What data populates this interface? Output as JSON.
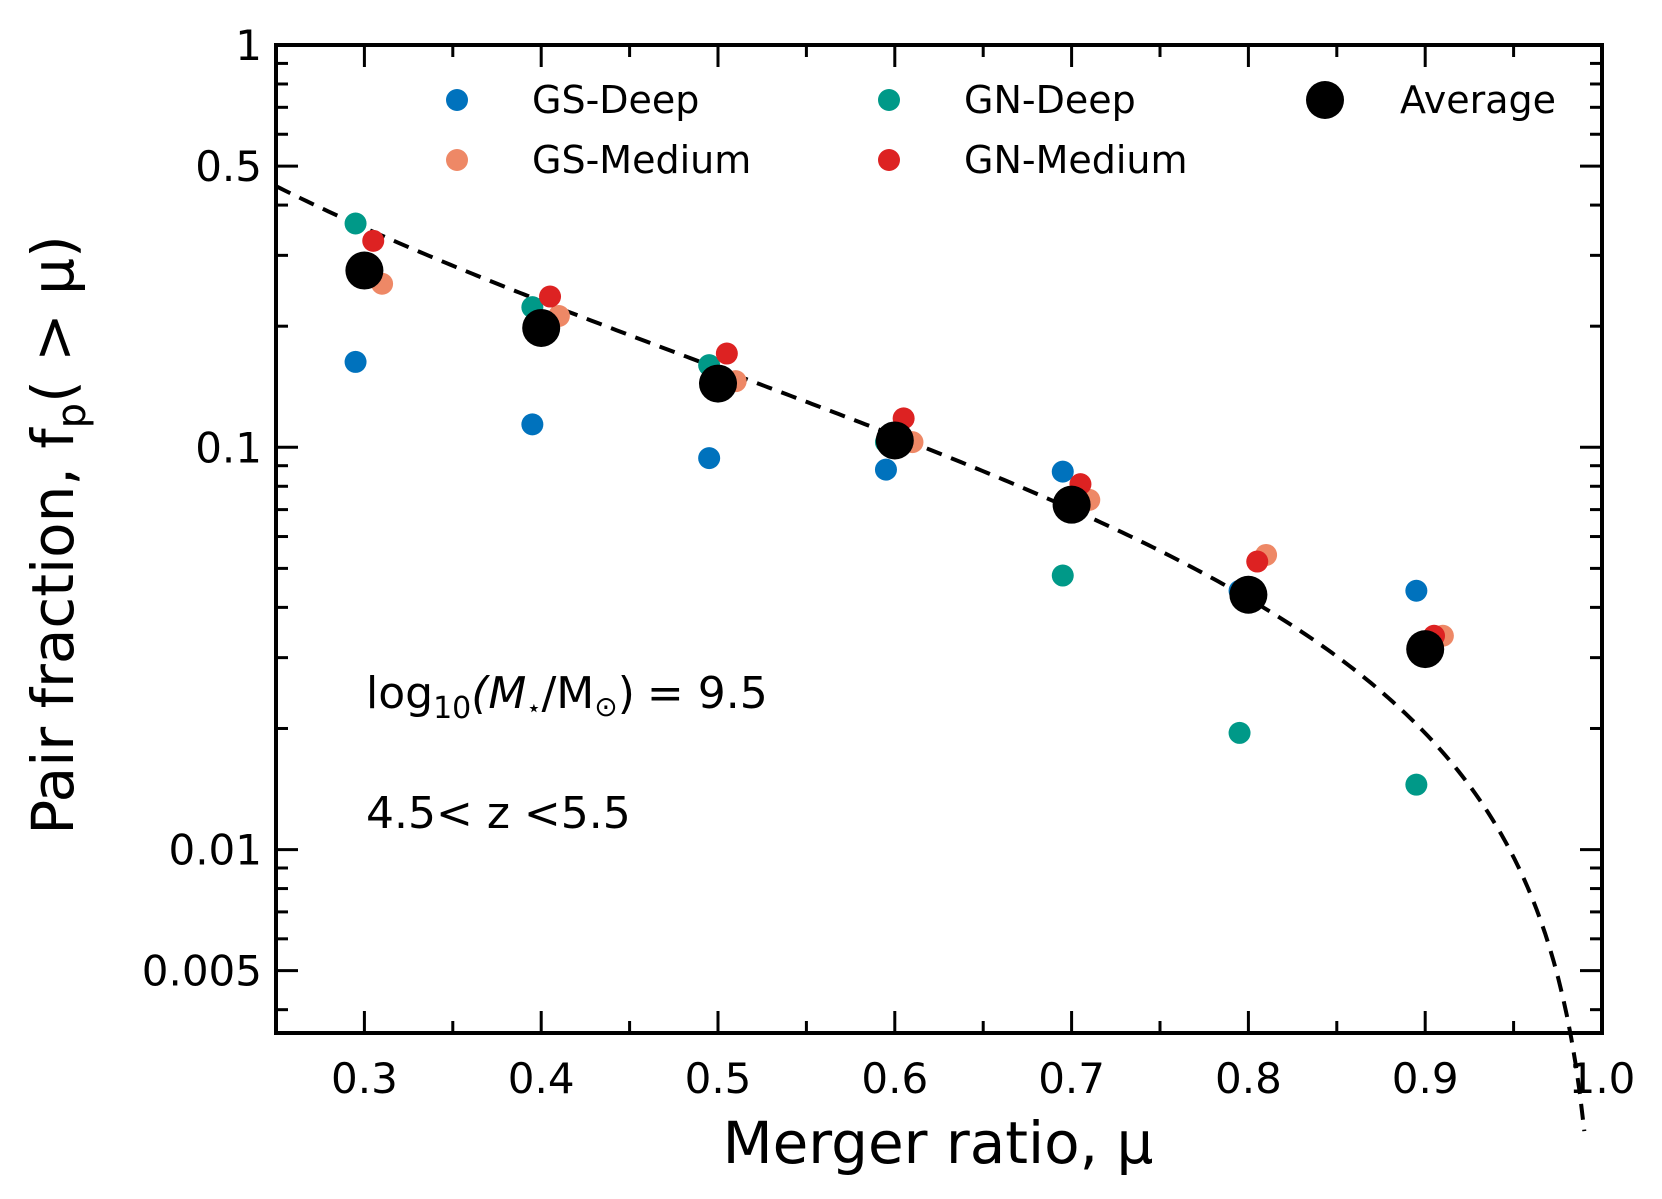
{
  "chart_data": {
    "type": "scatter",
    "xlabel": "Merger ratio, μ",
    "ylabel": "Pair fraction, f",
    "ylabel_subscript": "p",
    "ylabel_suffix": "( > μ)",
    "xlim": [
      0.25,
      1.0
    ],
    "ylim": [
      0.0035,
      1.0
    ],
    "yscale": "log",
    "x_ticks": [
      0.3,
      0.4,
      0.5,
      0.6,
      0.7,
      0.8,
      0.9,
      1.0
    ],
    "x_tick_labels": [
      "0.3",
      "0.4",
      "0.5",
      "0.6",
      "0.7",
      "0.8",
      "0.9",
      "1.0"
    ],
    "y_ticks": [
      0.005,
      0.01,
      0.1,
      0.5,
      1
    ],
    "y_tick_labels": [
      "0.005",
      "0.01",
      "0.1",
      "0.5",
      "1"
    ],
    "legend_position": "top",
    "series": [
      {
        "name": "GS-Deep",
        "color": "#0072bd",
        "x": [
          0.295,
          0.395,
          0.495,
          0.595,
          0.695,
          0.795,
          0.895
        ],
        "y": [
          0.163,
          0.114,
          0.094,
          0.088,
          0.087,
          0.044,
          0.044
        ]
      },
      {
        "name": "GS-Medium",
        "color": "#ee8866",
        "x": [
          0.31,
          0.41,
          0.51,
          0.61,
          0.71,
          0.81,
          0.91
        ],
        "y": [
          0.255,
          0.212,
          0.146,
          0.103,
          0.074,
          0.054,
          0.034
        ]
      },
      {
        "name": "GN-Deep",
        "color": "#009988",
        "x": [
          0.295,
          0.395,
          0.495,
          0.595,
          0.695,
          0.795,
          0.895
        ],
        "y": [
          0.36,
          0.223,
          0.16,
          0.103,
          0.048,
          0.0195,
          0.0145
        ]
      },
      {
        "name": "GN-Medium",
        "color": "#dd2222",
        "x": [
          0.305,
          0.405,
          0.505,
          0.605,
          0.705,
          0.805,
          0.905
        ],
        "y": [
          0.326,
          0.237,
          0.171,
          0.118,
          0.081,
          0.052,
          0.034
        ]
      },
      {
        "name": "Average",
        "color": "#000000",
        "x": [
          0.3,
          0.4,
          0.5,
          0.6,
          0.7,
          0.8,
          0.9
        ],
        "y": [
          0.275,
          0.198,
          0.144,
          0.104,
          0.072,
          0.043,
          0.0315
        ]
      }
    ],
    "fit_curve": {
      "style": "dashed",
      "color": "#000000",
      "A": 0.157,
      "gamma": 0.95,
      "x_end": 0.99
    },
    "annotations": {
      "mass_prefix": "log",
      "mass_sub": "10",
      "mass_body": "(M",
      "mass_star": "⋆",
      "mass_slash": "/M",
      "mass_sun": "⊙",
      "mass_close": ")",
      "mass_value": "= 9.5",
      "redshift": "4.5< z <5.5"
    }
  }
}
